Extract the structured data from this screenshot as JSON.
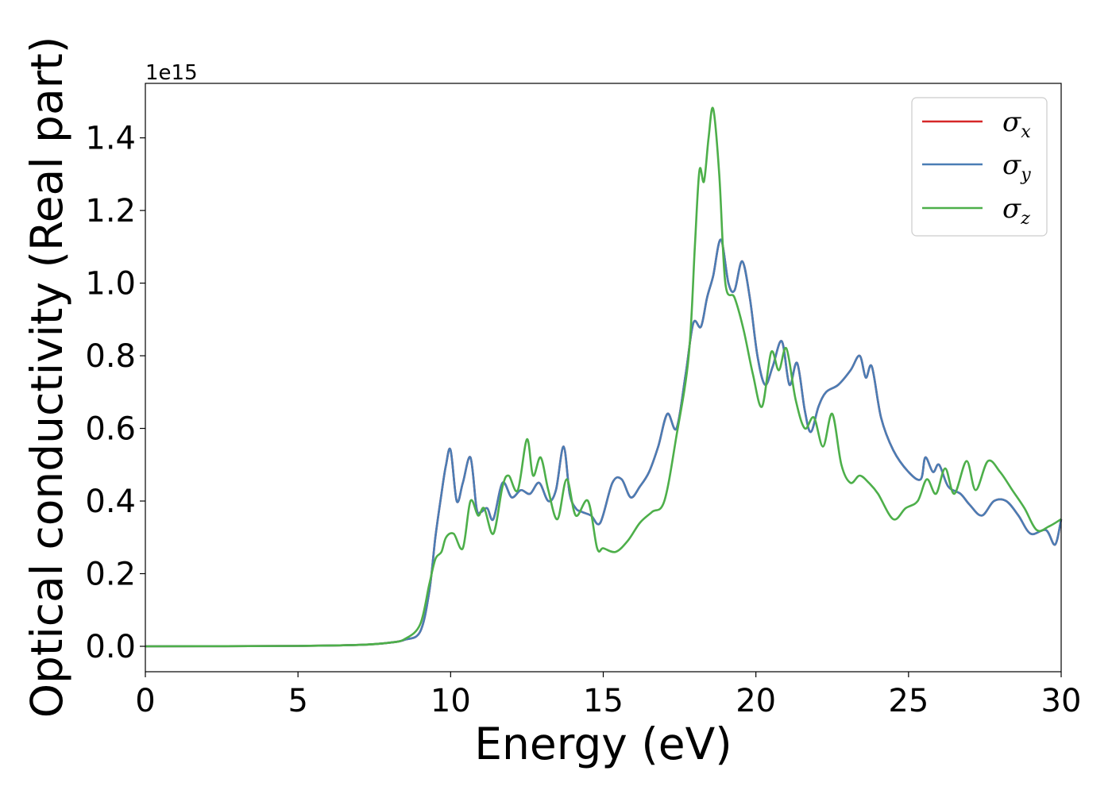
{
  "chart_data": {
    "type": "line",
    "title": "",
    "xlabel": "Energy (eV)",
    "ylabel": "Optical conductivity (Real part)",
    "y_offset_label": "1e15",
    "xlim": [
      0,
      30
    ],
    "ylim": [
      -0.07,
      1.55
    ],
    "x_ticks": [
      0,
      5,
      10,
      15,
      20,
      25,
      30
    ],
    "y_ticks": [
      0.0,
      0.2,
      0.4,
      0.6,
      0.8,
      1.0,
      1.2,
      1.4
    ],
    "x_tick_labels": [
      "0",
      "5",
      "10",
      "15",
      "20",
      "25",
      "30"
    ],
    "y_tick_labels": [
      "0.0",
      "0.2",
      "0.4",
      "0.6",
      "0.8",
      "1.0",
      "1.2",
      "1.4"
    ],
    "grid": false,
    "legend_position": "top-right",
    "series": [
      {
        "name": "σx",
        "symbol": "σ",
        "subscript": "x",
        "color": "#d62728",
        "x": [
          0,
          5,
          7,
          8,
          8.5,
          9,
          9.3,
          9.5,
          9.7,
          9.85,
          10,
          10.2,
          10.4,
          10.65,
          10.85,
          11,
          11.2,
          11.4,
          11.7,
          12,
          12.3,
          12.6,
          12.9,
          13.2,
          13.45,
          13.7,
          13.9,
          14.1,
          14.3,
          14.6,
          14.9,
          15.3,
          15.6,
          15.9,
          16.2,
          16.5,
          16.8,
          17.1,
          17.4,
          17.7,
          17.95,
          18.2,
          18.4,
          18.6,
          18.85,
          19.1,
          19.3,
          19.55,
          19.8,
          20.05,
          20.3,
          20.55,
          20.85,
          21.1,
          21.35,
          21.6,
          21.8,
          22.05,
          22.3,
          22.7,
          23.1,
          23.4,
          23.6,
          23.8,
          24.1,
          24.5,
          25,
          25.4,
          25.55,
          25.8,
          26,
          26.3,
          26.7,
          27,
          27.4,
          27.8,
          28.2,
          28.6,
          29,
          29.5,
          29.8,
          30
        ],
        "y": [
          0,
          0.001,
          0.004,
          0.01,
          0.018,
          0.04,
          0.15,
          0.3,
          0.42,
          0.5,
          0.54,
          0.4,
          0.45,
          0.52,
          0.38,
          0.37,
          0.38,
          0.35,
          0.45,
          0.41,
          0.43,
          0.42,
          0.45,
          0.4,
          0.43,
          0.55,
          0.42,
          0.38,
          0.37,
          0.36,
          0.34,
          0.45,
          0.46,
          0.41,
          0.44,
          0.48,
          0.55,
          0.64,
          0.6,
          0.75,
          0.89,
          0.88,
          0.96,
          1.02,
          1.12,
          1.0,
          0.98,
          1.06,
          0.96,
          0.8,
          0.72,
          0.77,
          0.84,
          0.72,
          0.78,
          0.65,
          0.59,
          0.66,
          0.7,
          0.72,
          0.76,
          0.8,
          0.74,
          0.77,
          0.63,
          0.54,
          0.48,
          0.46,
          0.52,
          0.48,
          0.5,
          0.44,
          0.42,
          0.39,
          0.36,
          0.4,
          0.4,
          0.36,
          0.31,
          0.32,
          0.28,
          0.35
        ]
      },
      {
        "name": "σy",
        "symbol": "σ",
        "subscript": "y",
        "color": "#4a7db5",
        "x": [
          0,
          5,
          7,
          8,
          8.5,
          9,
          9.3,
          9.5,
          9.7,
          9.85,
          10,
          10.2,
          10.4,
          10.65,
          10.85,
          11,
          11.2,
          11.4,
          11.7,
          12,
          12.3,
          12.6,
          12.9,
          13.2,
          13.45,
          13.7,
          13.9,
          14.1,
          14.3,
          14.6,
          14.9,
          15.3,
          15.6,
          15.9,
          16.2,
          16.5,
          16.8,
          17.1,
          17.4,
          17.7,
          17.95,
          18.2,
          18.4,
          18.6,
          18.85,
          19.1,
          19.3,
          19.55,
          19.8,
          20.05,
          20.3,
          20.55,
          20.85,
          21.1,
          21.35,
          21.6,
          21.8,
          22.05,
          22.3,
          22.7,
          23.1,
          23.4,
          23.6,
          23.8,
          24.1,
          24.5,
          25,
          25.4,
          25.55,
          25.8,
          26,
          26.3,
          26.7,
          27,
          27.4,
          27.8,
          28.2,
          28.6,
          29,
          29.5,
          29.8,
          30
        ],
        "y": [
          0,
          0.001,
          0.004,
          0.01,
          0.018,
          0.04,
          0.15,
          0.3,
          0.42,
          0.5,
          0.54,
          0.4,
          0.45,
          0.52,
          0.38,
          0.37,
          0.38,
          0.35,
          0.45,
          0.41,
          0.43,
          0.42,
          0.45,
          0.4,
          0.43,
          0.55,
          0.42,
          0.38,
          0.37,
          0.36,
          0.34,
          0.45,
          0.46,
          0.41,
          0.44,
          0.48,
          0.55,
          0.64,
          0.6,
          0.75,
          0.89,
          0.88,
          0.96,
          1.02,
          1.12,
          1.0,
          0.98,
          1.06,
          0.96,
          0.8,
          0.72,
          0.77,
          0.84,
          0.72,
          0.78,
          0.65,
          0.59,
          0.66,
          0.7,
          0.72,
          0.76,
          0.8,
          0.74,
          0.77,
          0.63,
          0.54,
          0.48,
          0.46,
          0.52,
          0.48,
          0.5,
          0.44,
          0.42,
          0.39,
          0.36,
          0.4,
          0.4,
          0.36,
          0.31,
          0.32,
          0.28,
          0.35
        ]
      },
      {
        "name": "σz",
        "symbol": "σ",
        "subscript": "z",
        "color": "#4daf4a",
        "x": [
          0,
          5,
          7,
          8,
          8.5,
          9,
          9.3,
          9.5,
          9.7,
          9.85,
          10.1,
          10.4,
          10.65,
          10.9,
          11.1,
          11.4,
          11.7,
          11.9,
          12.2,
          12.5,
          12.7,
          12.95,
          13.2,
          13.5,
          13.8,
          14.1,
          14.5,
          14.8,
          15.0,
          15.4,
          15.8,
          16.2,
          16.6,
          17.0,
          17.4,
          17.8,
          18.0,
          18.15,
          18.3,
          18.45,
          18.6,
          18.8,
          19.0,
          19.3,
          19.6,
          19.9,
          20.2,
          20.5,
          20.75,
          21.0,
          21.3,
          21.6,
          21.9,
          22.2,
          22.5,
          22.8,
          23.1,
          23.4,
          23.7,
          24.0,
          24.5,
          24.9,
          25.3,
          25.6,
          25.9,
          26.2,
          26.5,
          26.9,
          27.2,
          27.6,
          28.0,
          28.4,
          28.8,
          29.2,
          29.6,
          30
        ],
        "y": [
          0,
          0.001,
          0.004,
          0.01,
          0.02,
          0.06,
          0.17,
          0.24,
          0.26,
          0.3,
          0.31,
          0.27,
          0.4,
          0.36,
          0.38,
          0.31,
          0.44,
          0.47,
          0.43,
          0.57,
          0.47,
          0.52,
          0.43,
          0.35,
          0.46,
          0.36,
          0.4,
          0.27,
          0.27,
          0.26,
          0.29,
          0.34,
          0.37,
          0.4,
          0.58,
          0.8,
          1.1,
          1.31,
          1.28,
          1.4,
          1.48,
          1.3,
          1.0,
          0.96,
          0.87,
          0.75,
          0.66,
          0.81,
          0.76,
          0.82,
          0.68,
          0.6,
          0.63,
          0.55,
          0.64,
          0.5,
          0.45,
          0.47,
          0.45,
          0.42,
          0.35,
          0.38,
          0.4,
          0.46,
          0.42,
          0.49,
          0.42,
          0.51,
          0.43,
          0.51,
          0.48,
          0.43,
          0.38,
          0.32,
          0.33,
          0.35
        ]
      }
    ]
  }
}
